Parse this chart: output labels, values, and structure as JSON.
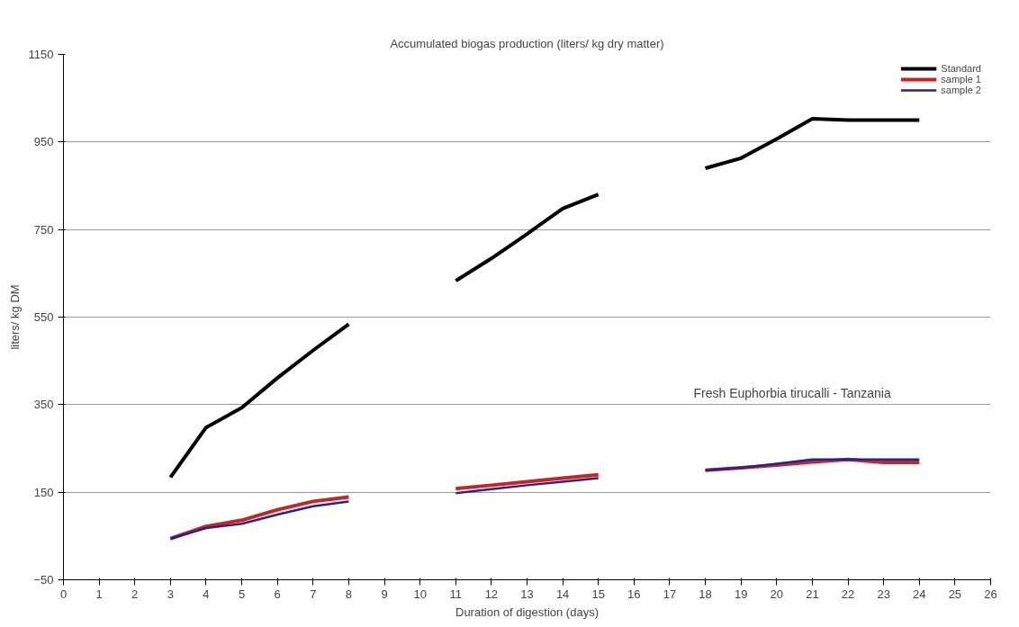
{
  "chart_data": {
    "type": "line",
    "title": "Accumulated biogas production (liters/ kg dry matter)",
    "xlabel": "Duration of digestion (days)",
    "ylabel": "liters/ kg DM",
    "x": [
      3,
      4,
      5,
      6,
      7,
      8,
      9,
      10,
      11,
      12,
      13,
      14,
      15,
      16,
      17,
      18,
      19,
      20,
      21,
      22,
      23,
      24
    ],
    "series": [
      {
        "name": "Standard",
        "color": "#000000",
        "values": [
          184,
          298,
          343,
          411,
          474,
          534,
          null,
          null,
          633,
          684,
          740,
          798,
          830,
          null,
          null,
          890,
          913,
          957,
          1003,
          1000,
          1000,
          1000
        ]
      },
      {
        "name": "sample 1",
        "color": "#cc2222",
        "values": [
          44,
          72,
          86,
          110,
          129,
          139,
          null,
          null,
          158,
          166,
          174,
          182,
          190,
          null,
          null,
          200,
          206,
          212,
          219,
          225,
          218,
          218
        ]
      },
      {
        "name": "sample 2",
        "color": "#222299",
        "values": [
          44,
          68,
          78,
          99,
          118,
          129,
          null,
          null,
          148,
          157,
          166,
          174,
          182,
          null,
          null,
          200,
          206,
          215,
          225,
          225,
          225,
          225
        ]
      }
    ],
    "xlim": [
      0,
      26
    ],
    "xticks": [
      0,
      1,
      2,
      3,
      4,
      5,
      6,
      7,
      8,
      9,
      10,
      11,
      12,
      13,
      14,
      15,
      16,
      17,
      18,
      19,
      20,
      21,
      22,
      23,
      24,
      25,
      26
    ],
    "ylim": [
      -50,
      1150
    ],
    "yticks": [
      -50,
      150,
      350,
      550,
      750,
      950,
      1150
    ],
    "grid": "y",
    "legend": "top right",
    "marker": "none",
    "line_style": "solid",
    "annotations": [
      "Fresh Euphorbia tirucalli - Tanzania"
    ]
  }
}
